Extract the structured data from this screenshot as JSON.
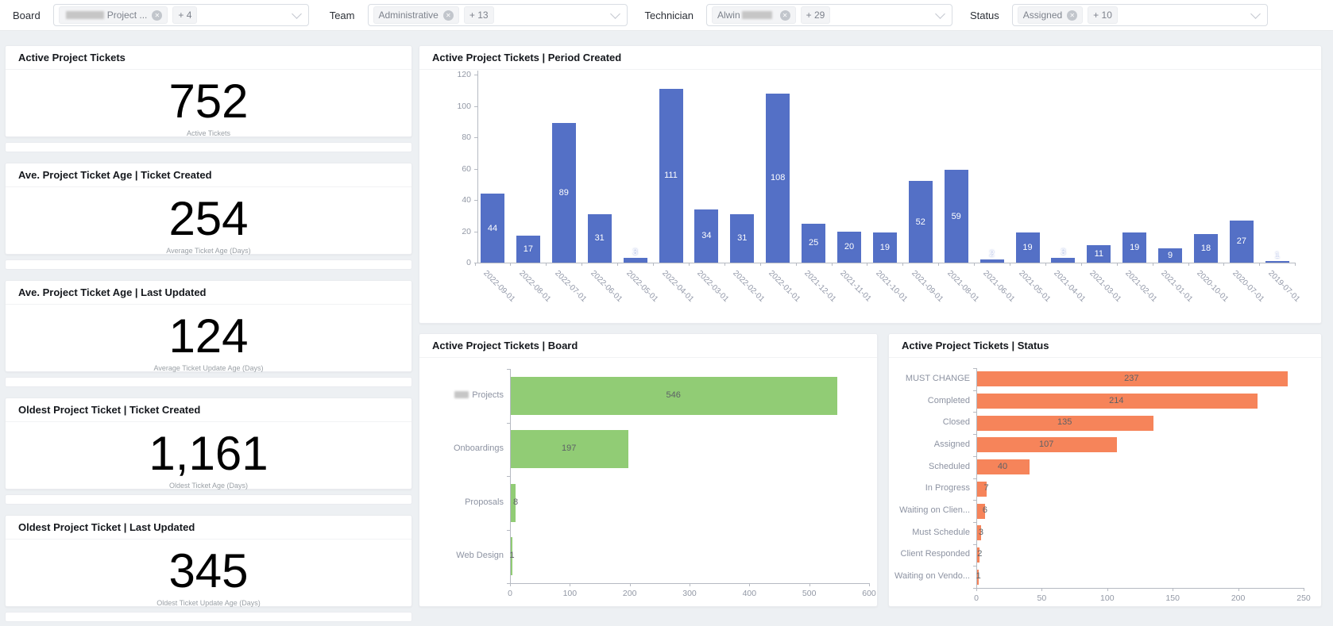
{
  "filter_bar": {
    "groups": [
      {
        "id": "board",
        "label": "Board",
        "selected_tag": {
          "text": "Project ...",
          "redacted_prefix": true,
          "redacted_suffix": false
        },
        "overflow_count": "+ 4"
      },
      {
        "id": "team",
        "label": "Team",
        "selected_tag": {
          "text": "Administrative",
          "redacted_prefix": false,
          "redacted_suffix": false
        },
        "overflow_count": "+ 13"
      },
      {
        "id": "technician",
        "label": "Technician",
        "selected_tag": {
          "text": "Alwin",
          "redacted_prefix": false,
          "redacted_suffix": true
        },
        "overflow_count": "+ 29"
      },
      {
        "id": "status",
        "label": "Status",
        "selected_tag": {
          "text": "Assigned",
          "redacted_prefix": false,
          "redacted_suffix": false
        },
        "overflow_count": "+ 10"
      }
    ]
  },
  "kpi_cards": [
    {
      "title": "Active Project Tickets",
      "value": "752",
      "caption": "Active Tickets"
    },
    {
      "title": "Ave. Project Ticket Age | Ticket Created",
      "value": "254",
      "caption": "Average Ticket Age (Days)"
    },
    {
      "title": "Ave. Project Ticket Age | Last Updated",
      "value": "124",
      "caption": "Average Ticket Update Age (Days)"
    },
    {
      "title": "Oldest Project Ticket | Ticket Created",
      "value": "1,161",
      "caption": "Oldest Ticket Age (Days)"
    },
    {
      "title": "Oldest Project Ticket | Last Updated",
      "value": "345",
      "caption": "Oldest Ticket Update Age (Days)"
    }
  ],
  "colors": {
    "bar_blue": "#5470c6",
    "bar_green": "#91cc75",
    "bar_orange": "#f6845a",
    "axis_gray": "#b6bac2"
  },
  "chart_data": [
    {
      "id": "period_created",
      "type": "bar",
      "orientation": "vertical",
      "title": "Active Project Tickets | Period Created",
      "bar_color": "#5470c6",
      "categories": [
        "2022-09-01",
        "2022-08-01",
        "2022-07-01",
        "2022-06-01",
        "2022-05-01",
        "2022-04-01",
        "2022-03-01",
        "2022-02-01",
        "2022-01-01",
        "2021-12-01",
        "2021-11-01",
        "2021-10-01",
        "2021-09-01",
        "2021-08-01",
        "2021-06-01",
        "2021-05-01",
        "2021-04-01",
        "2021-03-01",
        "2021-02-01",
        "2021-01-01",
        "2020-10-01",
        "2020-07-01",
        "2019-07-01"
      ],
      "values": [
        44,
        17,
        89,
        31,
        3,
        111,
        34,
        31,
        108,
        25,
        20,
        19,
        52,
        59,
        2,
        19,
        3,
        11,
        19,
        9,
        18,
        27,
        1
      ],
      "ylim": [
        0,
        120
      ],
      "yticks": [
        0,
        20,
        40,
        60,
        80,
        100,
        120
      ],
      "grid": false,
      "legend": false,
      "value_labels": "inside-white"
    },
    {
      "id": "board",
      "type": "bar",
      "orientation": "horizontal",
      "title": "Active Project Tickets | Board",
      "bar_color": "#91cc75",
      "categories": [
        {
          "text": "Projects",
          "redacted_prefix": true
        },
        {
          "text": "Onboardings"
        },
        {
          "text": "Proposals"
        },
        {
          "text": "Web Design"
        }
      ],
      "values": [
        546,
        197,
        8,
        1
      ],
      "xlim": [
        0,
        600
      ],
      "xticks": [
        0,
        100,
        200,
        300,
        400,
        500,
        600
      ],
      "grid": false,
      "legend": false,
      "value_labels": "inside-dark"
    },
    {
      "id": "status",
      "type": "bar",
      "orientation": "horizontal",
      "title": "Active Project Tickets | Status",
      "bar_color": "#f6845a",
      "categories": [
        "MUST CHANGE",
        "Completed",
        "Closed",
        "Assigned",
        "Scheduled",
        "In Progress",
        "Waiting on Clien...",
        "Must Schedule",
        "Client Responded",
        "Waiting on Vendo..."
      ],
      "values": [
        237,
        214,
        135,
        107,
        40,
        7,
        6,
        3,
        2,
        1
      ],
      "xlim": [
        0,
        250
      ],
      "xticks": [
        0,
        50,
        100,
        150,
        200,
        250
      ],
      "grid": false,
      "legend": false,
      "value_labels": "inside-dark"
    }
  ]
}
